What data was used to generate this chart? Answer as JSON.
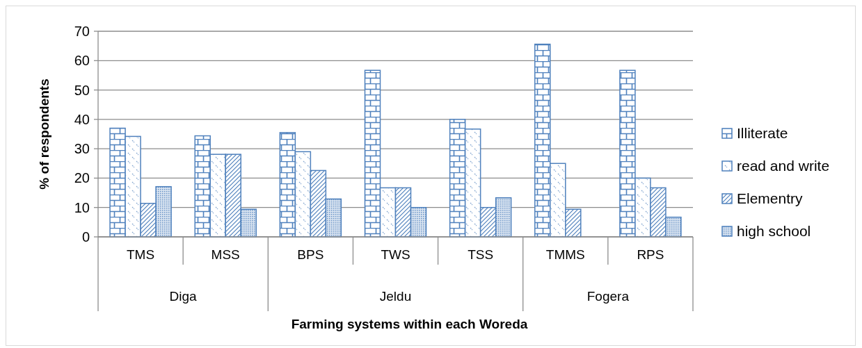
{
  "chart_data": {
    "type": "bar",
    "xlabel": "Farming systems within each Woreda",
    "ylabel": "% of respondents",
    "categories": [
      "TMS",
      "MSS",
      "BPS",
      "TWS",
      "TSS",
      "TMMS",
      "RPS"
    ],
    "series": [
      {
        "name": "Illiterate",
        "color": "#4f81bd",
        "values": [
          37,
          34.4,
          35.5,
          56.7,
          40,
          65.6,
          56.7
        ]
      },
      {
        "name": "read and write",
        "color": "#4f81bd",
        "values": [
          34.2,
          28.1,
          29,
          16.7,
          36.7,
          25,
          20
        ]
      },
      {
        "name": "Elementry",
        "color": "#4f81bd",
        "values": [
          11.4,
          28.1,
          22.6,
          16.7,
          10,
          9.4,
          16.7
        ]
      },
      {
        "name": "high school",
        "color": "#4f81bd",
        "values": [
          17.1,
          9.4,
          12.9,
          10,
          13.3,
          0,
          6.7
        ]
      }
    ],
    "annotations": [
      "Diga",
      "Jeldu",
      "Fogera"
    ],
    "ylim": [
      0,
      70
    ],
    "yticks": [
      0,
      10,
      20,
      30,
      40,
      50,
      60,
      70
    ],
    "grid": "y",
    "legend": "right"
  }
}
